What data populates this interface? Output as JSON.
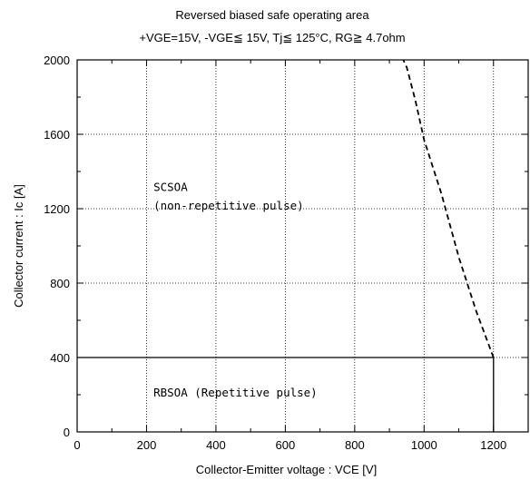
{
  "chart_data": {
    "type": "line",
    "title": "Reversed biased safe operating area",
    "subtitle": "+VGE=15V,  -VGE≦ 15V,  Tj≦ 125°C,  RG≧ 4.7ohm",
    "xlabel": "Collector-Emitter  voltage  :  VCE [V]",
    "ylabel": "Collector  current  :  Ic [A]",
    "xlim": [
      0,
      1300
    ],
    "ylim": [
      0,
      2000
    ],
    "xticks": [
      0,
      200,
      400,
      600,
      800,
      1000,
      1200
    ],
    "yticks": [
      0,
      400,
      800,
      1200,
      1600,
      2000
    ],
    "grid": true,
    "series": [
      {
        "style": "solid",
        "x": [
          0,
          1200,
          1200
        ],
        "y": [
          400,
          400,
          0
        ]
      },
      {
        "style": "dashed",
        "x": [
          1200,
          1150,
          1100,
          1050,
          1000,
          975,
          950,
          940
        ],
        "y": [
          400,
          650,
          940,
          1280,
          1570,
          1780,
          1960,
          2000
        ]
      }
    ],
    "annotations": [
      {
        "text": "SCSOA",
        "x": 220,
        "y": 1295
      },
      {
        "text": "(non-repetitive pulse)",
        "x": 220,
        "y": 1195
      },
      {
        "text": "RBSOA (Repetitive pulse)",
        "x": 220,
        "y": 190
      }
    ]
  }
}
